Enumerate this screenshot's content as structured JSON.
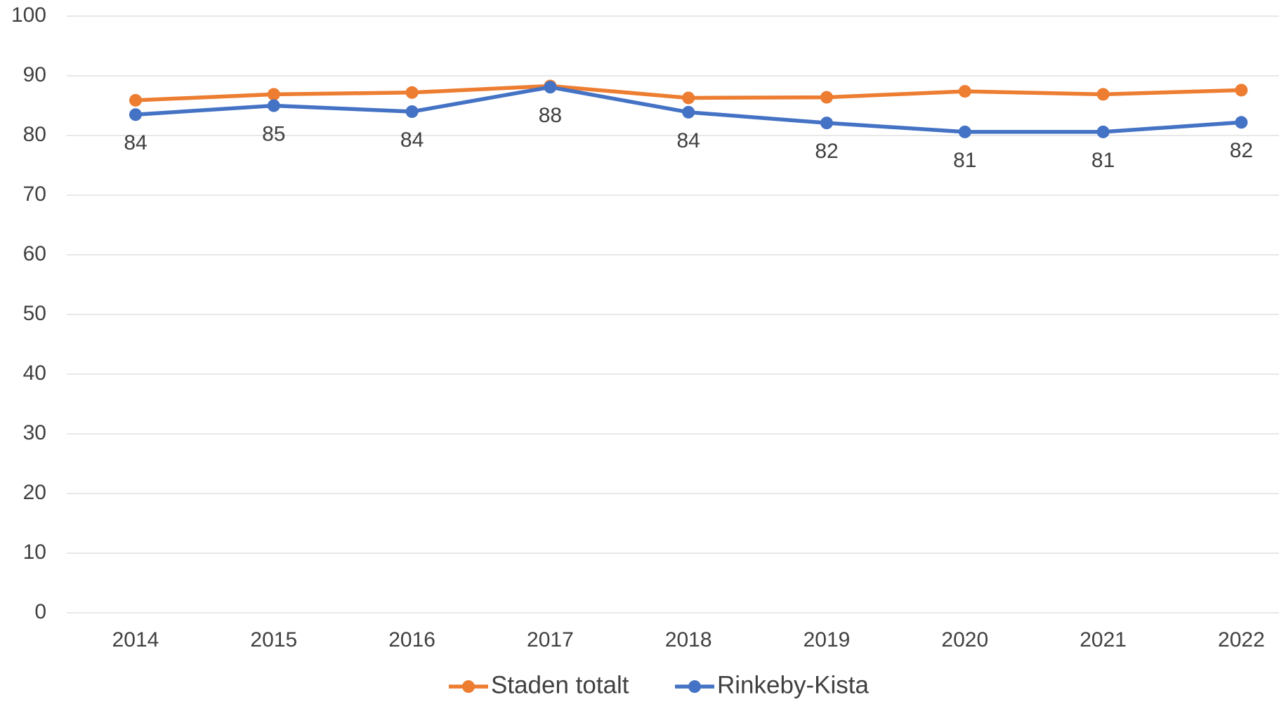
{
  "chart_data": {
    "type": "line",
    "categories": [
      "2014",
      "2015",
      "2016",
      "2017",
      "2018",
      "2019",
      "2020",
      "2021",
      "2022"
    ],
    "series": [
      {
        "name": "Staden totalt",
        "color": "#ed7d31",
        "values": [
          85.9,
          86.9,
          87.2,
          88.3,
          86.3,
          86.4,
          87.4,
          86.9,
          87.6
        ]
      },
      {
        "name": "Rinkeby-Kista",
        "color": "#4472c4",
        "values": [
          83.5,
          85.0,
          84.0,
          88.1,
          83.9,
          82.1,
          80.6,
          80.6,
          82.2
        ],
        "value_labels": [
          "84",
          "85",
          "84",
          "88",
          "84",
          "82",
          "81",
          "81",
          "82"
        ]
      }
    ],
    "ylim": [
      0,
      100
    ],
    "yticks": [
      0,
      10,
      20,
      30,
      40,
      50,
      60,
      70,
      80,
      90,
      100
    ],
    "grid": true,
    "legend": "bottom"
  }
}
